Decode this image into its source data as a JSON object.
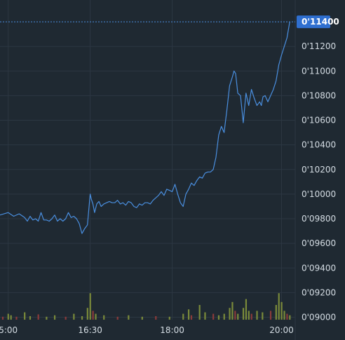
{
  "chart_data": {
    "type": "line",
    "colors": {
      "background": "#1f2932",
      "grid": "#2c3742",
      "line": "#4a8fe0",
      "last_price_bg": "#2f6fd0",
      "volume_up": "#7a8a3a",
      "volume_down": "#8a3a3a",
      "axis_text": "#d5dde4"
    },
    "x_axis": {
      "ticks": [
        {
          "label": "5:00",
          "hour": 15.0
        },
        {
          "label": "16:30",
          "hour": 16.5
        },
        {
          "label": "18:00",
          "hour": 18.0
        },
        {
          "label": "20:00",
          "hour": 20.0
        }
      ],
      "range": [
        14.85,
        20.25
      ]
    },
    "y_axis": {
      "ticks": [
        {
          "label": "0'11200",
          "value": 0.112
        },
        {
          "label": "0'11000",
          "value": 0.11
        },
        {
          "label": "0'10800",
          "value": 0.108
        },
        {
          "label": "0'10600",
          "value": 0.106
        },
        {
          "label": "0'10400",
          "value": 0.104
        },
        {
          "label": "0'10200",
          "value": 0.102
        },
        {
          "label": "0'10000",
          "value": 0.1
        },
        {
          "label": "0'09800",
          "value": 0.098
        },
        {
          "label": "0'09600",
          "value": 0.096
        },
        {
          "label": "0'09400",
          "value": 0.094
        },
        {
          "label": "0'09200",
          "value": 0.092
        },
        {
          "label": "0'09000",
          "value": 0.09
        }
      ],
      "range": [
        0.0898,
        0.1152
      ]
    },
    "last_price": {
      "label": "0'11400",
      "value": 0.114
    },
    "grid": true,
    "series": [
      {
        "x": [
          14.85,
          15.0,
          15.1,
          15.2,
          15.3,
          15.35,
          15.4,
          15.45,
          15.5,
          15.55,
          15.6,
          15.65,
          15.7,
          15.75,
          15.8,
          15.85,
          15.9,
          15.95,
          16.0,
          16.05,
          16.1,
          16.15,
          16.2,
          16.25,
          16.3,
          16.35,
          16.4,
          16.45,
          16.5,
          16.52,
          16.55,
          16.58,
          16.62,
          16.66,
          16.7,
          16.75,
          16.8,
          16.85,
          16.9,
          16.95,
          17.0,
          17.05,
          17.1,
          17.15,
          17.2,
          17.25,
          17.3,
          17.35,
          17.4,
          17.45,
          17.5,
          17.55,
          17.6,
          17.65,
          17.7,
          17.75,
          17.8,
          17.85,
          17.9,
          17.95,
          18.0,
          18.05,
          18.1,
          18.15,
          18.2,
          18.25,
          18.3,
          18.35,
          18.4,
          18.45,
          18.5,
          18.55,
          18.6,
          18.65,
          18.7,
          18.75,
          18.8,
          18.85,
          18.9,
          18.95,
          19.0,
          19.05,
          19.1,
          19.13,
          19.16,
          19.2,
          19.25,
          19.3,
          19.35,
          19.4,
          19.45,
          19.5,
          19.55,
          19.6,
          19.63,
          19.66,
          19.7,
          19.75,
          19.8,
          19.85,
          19.9,
          19.95,
          20.0,
          20.05,
          20.1,
          20.15
        ],
        "values": [
          0.0983,
          0.0985,
          0.0982,
          0.0984,
          0.0981,
          0.0978,
          0.0982,
          0.0979,
          0.098,
          0.0978,
          0.0985,
          0.0979,
          0.0979,
          0.0978,
          0.098,
          0.0983,
          0.0978,
          0.098,
          0.0978,
          0.098,
          0.0985,
          0.0981,
          0.0982,
          0.098,
          0.0976,
          0.0968,
          0.0972,
          0.0975,
          0.1,
          0.0996,
          0.0992,
          0.0985,
          0.0992,
          0.0994,
          0.099,
          0.0992,
          0.0993,
          0.0994,
          0.0993,
          0.0993,
          0.0995,
          0.0992,
          0.0993,
          0.0991,
          0.0994,
          0.0993,
          0.099,
          0.0989,
          0.0992,
          0.0991,
          0.0993,
          0.0993,
          0.0992,
          0.0995,
          0.0997,
          0.0999,
          0.1002,
          0.0999,
          0.1004,
          0.1003,
          0.1002,
          0.1008,
          0.1,
          0.0993,
          0.099,
          0.1,
          0.1004,
          0.1009,
          0.1007,
          0.1011,
          0.1014,
          0.1013,
          0.1017,
          0.1018,
          0.1018,
          0.102,
          0.103,
          0.1048,
          0.1055,
          0.105,
          0.1068,
          0.1088,
          0.1095,
          0.11,
          0.1098,
          0.1082,
          0.108,
          0.1058,
          0.1082,
          0.1072,
          0.1085,
          0.1078,
          0.1072,
          0.1075,
          0.1072,
          0.1079,
          0.108,
          0.1075,
          0.108,
          0.1085,
          0.1092,
          0.1105,
          0.1113,
          0.112,
          0.1127,
          0.114
        ]
      }
    ],
    "volume": {
      "max_value": 10,
      "bars": [
        {
          "x": 14.9,
          "v": 1.0,
          "up": false
        },
        {
          "x": 15.0,
          "v": 2.0,
          "up": true
        },
        {
          "x": 15.05,
          "v": 1.5,
          "up": true
        },
        {
          "x": 15.15,
          "v": 1.0,
          "up": false
        },
        {
          "x": 15.3,
          "v": 2.5,
          "up": true
        },
        {
          "x": 15.4,
          "v": 1.2,
          "up": true
        },
        {
          "x": 15.55,
          "v": 1.8,
          "up": false
        },
        {
          "x": 15.7,
          "v": 1.0,
          "up": true
        },
        {
          "x": 15.85,
          "v": 1.5,
          "up": true
        },
        {
          "x": 16.05,
          "v": 1.0,
          "up": false
        },
        {
          "x": 16.2,
          "v": 2.0,
          "up": true
        },
        {
          "x": 16.35,
          "v": 1.2,
          "up": true
        },
        {
          "x": 16.45,
          "v": 4.0,
          "up": true
        },
        {
          "x": 16.5,
          "v": 9.0,
          "up": true
        },
        {
          "x": 16.55,
          "v": 3.0,
          "up": false
        },
        {
          "x": 16.6,
          "v": 2.0,
          "up": true
        },
        {
          "x": 16.75,
          "v": 1.5,
          "up": true
        },
        {
          "x": 17.0,
          "v": 1.0,
          "up": false
        },
        {
          "x": 17.2,
          "v": 1.5,
          "up": true
        },
        {
          "x": 17.45,
          "v": 1.0,
          "up": true
        },
        {
          "x": 17.7,
          "v": 1.2,
          "up": false
        },
        {
          "x": 17.95,
          "v": 1.0,
          "up": true
        },
        {
          "x": 18.2,
          "v": 2.0,
          "up": true
        },
        {
          "x": 18.3,
          "v": 3.5,
          "up": true
        },
        {
          "x": 18.35,
          "v": 1.5,
          "up": false
        },
        {
          "x": 18.5,
          "v": 5.0,
          "up": true
        },
        {
          "x": 18.6,
          "v": 2.5,
          "up": true
        },
        {
          "x": 18.75,
          "v": 2.0,
          "up": false
        },
        {
          "x": 18.85,
          "v": 1.5,
          "up": true
        },
        {
          "x": 18.95,
          "v": 2.0,
          "up": true
        },
        {
          "x": 19.05,
          "v": 4.0,
          "up": true
        },
        {
          "x": 19.1,
          "v": 6.0,
          "up": true
        },
        {
          "x": 19.15,
          "v": 3.0,
          "up": false
        },
        {
          "x": 19.2,
          "v": 2.0,
          "up": true
        },
        {
          "x": 19.3,
          "v": 4.0,
          "up": true
        },
        {
          "x": 19.35,
          "v": 7.0,
          "up": true
        },
        {
          "x": 19.4,
          "v": 3.0,
          "up": true
        },
        {
          "x": 19.45,
          "v": 2.0,
          "up": false
        },
        {
          "x": 19.55,
          "v": 3.0,
          "up": true
        },
        {
          "x": 19.65,
          "v": 2.5,
          "up": true
        },
        {
          "x": 19.8,
          "v": 3.0,
          "up": false
        },
        {
          "x": 19.9,
          "v": 5.0,
          "up": true
        },
        {
          "x": 19.95,
          "v": 9.0,
          "up": true
        },
        {
          "x": 20.0,
          "v": 6.0,
          "up": true
        },
        {
          "x": 20.05,
          "v": 3.0,
          "up": true
        },
        {
          "x": 20.1,
          "v": 2.0,
          "up": false
        },
        {
          "x": 20.15,
          "v": 1.5,
          "up": true
        }
      ]
    }
  }
}
